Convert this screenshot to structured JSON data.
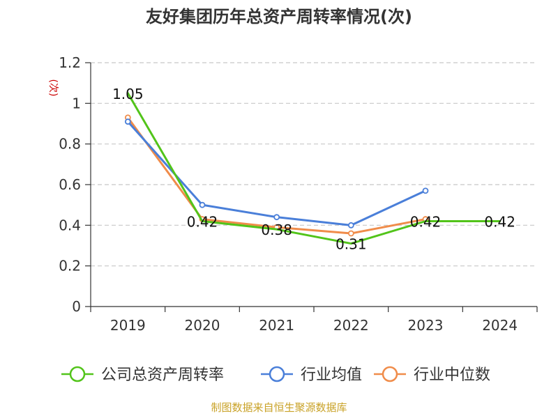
{
  "chart_data": {
    "type": "line",
    "title": "友好集团历年总资产周转率情况(次)",
    "ylabel": "(次)",
    "xlabel": "",
    "categories": [
      "2019",
      "2020",
      "2021",
      "2022",
      "2023",
      "2024"
    ],
    "ylim": [
      0,
      1.2
    ],
    "yticks": [
      0,
      0.2,
      0.4,
      0.6,
      0.8,
      1,
      1.2
    ],
    "ytick_labels": [
      "0",
      "0.2",
      "0.4",
      "0.6",
      "0.8",
      "1",
      "1.2"
    ],
    "grid": true,
    "legend_position": "bottom",
    "series": [
      {
        "name": "公司总资产周转率",
        "color": "#52c41a",
        "values": [
          1.05,
          0.42,
          0.38,
          0.31,
          0.42,
          0.42
        ],
        "labels": [
          "1.05",
          "0.42",
          "0.38",
          "0.31",
          "0.42",
          "0.42"
        ]
      },
      {
        "name": "行业均值",
        "color": "#4a7fd9",
        "values": [
          0.91,
          0.5,
          0.44,
          0.4,
          0.57,
          null
        ]
      },
      {
        "name": "行业中位数",
        "color": "#f08c4a",
        "values": [
          0.93,
          0.43,
          0.39,
          0.36,
          0.43,
          null
        ]
      }
    ]
  },
  "footer": {
    "source": "制图数据来自恒生聚源数据库"
  }
}
